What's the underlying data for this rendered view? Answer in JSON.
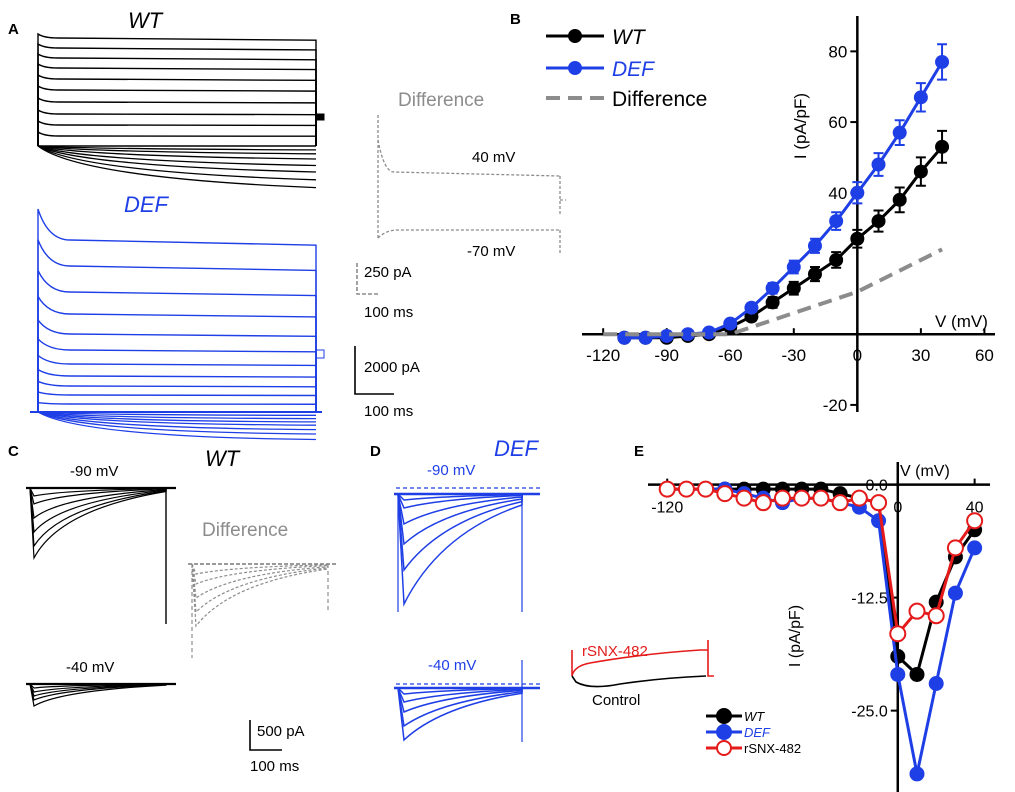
{
  "panels": {
    "A": {
      "letter": "A",
      "wt_title": "WT",
      "def_title": "DEF",
      "diff_title": "Difference",
      "diff_v1": "40 mV",
      "diff_v2": "-70 mV",
      "diff_scale_amp": "250 pA",
      "diff_scale_time": "100 ms",
      "scale_amp": "2000 pA",
      "scale_time": "100 ms"
    },
    "B": {
      "letter": "B"
    },
    "C": {
      "letter": "C",
      "title": "WT",
      "v1": "-90 mV",
      "v2": "-40 mV",
      "diff_title": "Difference",
      "scale_amp": "500 pA",
      "scale_time": "100 ms"
    },
    "D": {
      "letter": "D",
      "title": "DEF",
      "v1": "-90 mV",
      "v2": "-40 mV",
      "inset_drug": "rSNX-482",
      "inset_control": "Control"
    },
    "E": {
      "letter": "E"
    }
  },
  "colors": {
    "wt": "#000000",
    "def": "#1f3fe6",
    "diff": "#8c8c8c",
    "rsnx": "#e51b1b"
  },
  "chart_data": [
    {
      "panel": "B",
      "type": "line",
      "xlabel": "V (mV)",
      "ylabel": "I (pA/pF)",
      "xlim": [
        -130,
        65
      ],
      "ylim": [
        -22,
        90
      ],
      "xticks": [
        "-120",
        "-90",
        "-60",
        "-30",
        "0",
        "30",
        "60"
      ],
      "xtick_values": [
        -120,
        -90,
        -60,
        -30,
        0,
        30,
        60
      ],
      "yticks": [
        "-20",
        "40",
        "60",
        "80"
      ],
      "ytick_values": [
        -20,
        40,
        60,
        80
      ],
      "x": [
        -110,
        -100,
        -90,
        -80,
        -70,
        -60,
        -50,
        -40,
        -30,
        -20,
        -10,
        0,
        10,
        20,
        30,
        40
      ],
      "series": [
        {
          "name": "WT",
          "color": "#000000",
          "values": [
            -1,
            -1,
            -1,
            -0.5,
            0,
            2,
            5,
            9,
            13,
            17,
            21,
            27,
            32,
            38,
            46,
            53
          ],
          "errors": [
            0.8,
            0.8,
            0.8,
            0.8,
            0.8,
            1,
            1.2,
            1.5,
            1.8,
            2,
            2.2,
            2.5,
            3,
            3.5,
            4,
            4.5
          ]
        },
        {
          "name": "DEF",
          "color": "#1f3fe6",
          "values": [
            -1,
            -1,
            -0.5,
            0,
            0.5,
            3,
            7.5,
            13,
            19,
            25,
            32,
            40,
            48,
            57,
            67,
            77
          ],
          "errors": [
            0.8,
            0.8,
            0.8,
            0.8,
            0.8,
            1,
            1.2,
            1.5,
            1.8,
            2,
            2.5,
            3,
            3.2,
            3.5,
            4,
            5
          ]
        },
        {
          "name": "Difference",
          "color": "#8c8c8c",
          "dashed": true,
          "x": [
            -120,
            -60,
            0,
            40
          ],
          "values": [
            0,
            0,
            12,
            24
          ]
        }
      ]
    },
    {
      "panel": "E",
      "type": "line",
      "xlabel": "V (mV)",
      "ylabel": "I (pA/pF)",
      "xlim": [
        -130,
        48
      ],
      "ylim": [
        -34,
        2.5
      ],
      "xticks": [
        "-120",
        "0",
        "40"
      ],
      "xtick_values": [
        -120,
        0,
        40
      ],
      "yticks": [
        "0.0",
        "-12.5",
        "-25.0"
      ],
      "ytick_values": [
        0,
        -12.5,
        -25
      ],
      "x": [
        -120,
        -110,
        -100,
        -90,
        -80,
        -70,
        -60,
        -50,
        -40,
        -30,
        -20,
        -10,
        0,
        10,
        20,
        30,
        40
      ],
      "series": [
        {
          "name": "WT",
          "color": "#000000",
          "marker": "filled",
          "values": [
            -0.5,
            -0.5,
            -0.5,
            -0.5,
            -0.5,
            -0.5,
            -0.5,
            -0.5,
            -0.5,
            -1,
            -1.5,
            -2,
            -19,
            -21,
            -13,
            -8,
            -5
          ]
        },
        {
          "name": "DEF",
          "color": "#1f3fe6",
          "marker": "filled",
          "values": [
            -0.5,
            -0.5,
            -0.5,
            -0.5,
            -1,
            -1.5,
            -2,
            -1.5,
            -1.5,
            -2,
            -2.5,
            -4,
            -21,
            -32,
            -22,
            -12,
            -7
          ]
        },
        {
          "name": "rSNX-482",
          "color": "#e51b1b",
          "marker": "open",
          "values": [
            -0.5,
            -0.5,
            -0.5,
            -1,
            -1.5,
            -2,
            -1.5,
            -1.5,
            -1.5,
            -2,
            -1.5,
            -2,
            -16.5,
            -14,
            -14.5,
            -7,
            -4
          ]
        }
      ]
    }
  ]
}
